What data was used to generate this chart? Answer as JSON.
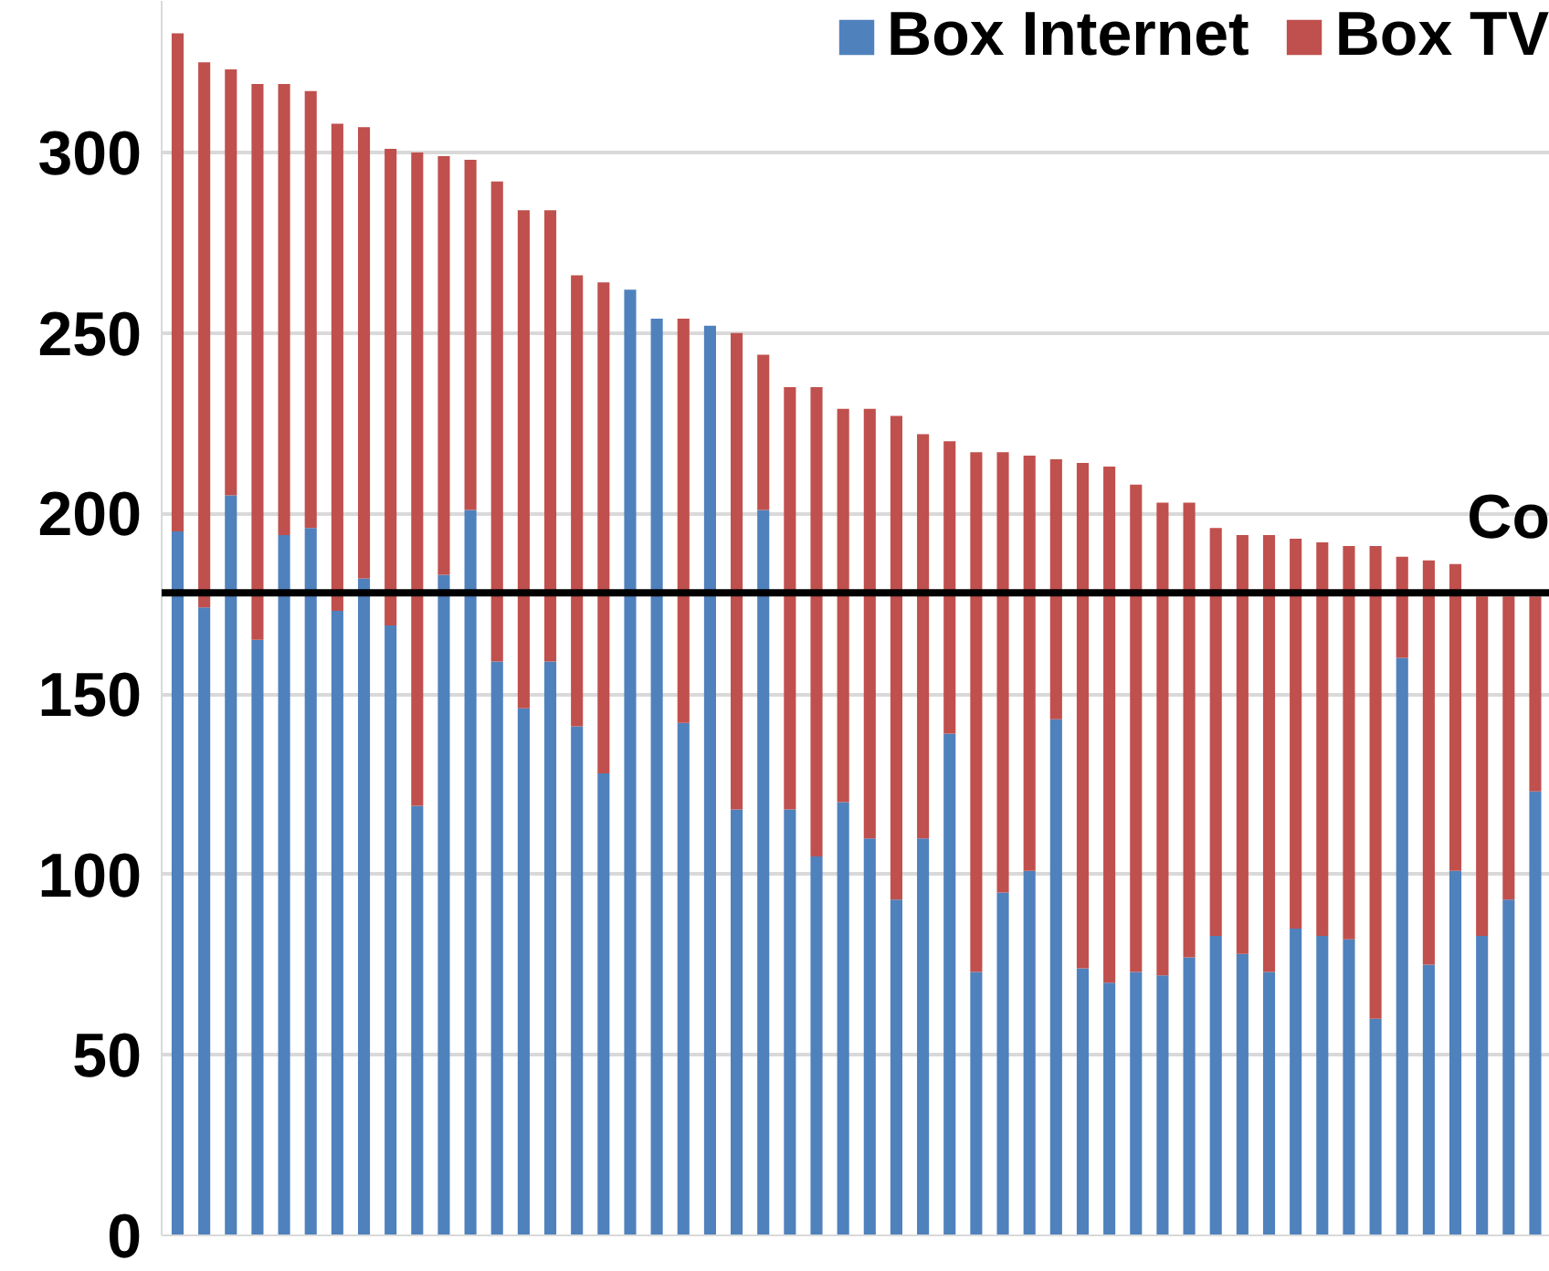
{
  "chart_data": {
    "type": "bar",
    "stacked": true,
    "categories": [
      null,
      null,
      null,
      null,
      null,
      null,
      null,
      null,
      null,
      null,
      null,
      null,
      null,
      null,
      null,
      null,
      null,
      null,
      null,
      null,
      null,
      null,
      null,
      null,
      null,
      null,
      null,
      null,
      null,
      null,
      null,
      null,
      null,
      null,
      null,
      null,
      null,
      null,
      null,
      null,
      null,
      null,
      null,
      null,
      null,
      null,
      null,
      null,
      null,
      null,
      null,
      null
    ],
    "series": [
      {
        "name": "Box Internet",
        "color": "#4f81bd",
        "values": [
          195,
          174,
          205,
          165,
          194,
          196,
          173,
          182,
          169,
          119,
          183,
          201,
          159,
          146,
          159,
          141,
          128,
          262,
          254,
          142,
          252,
          118,
          201,
          118,
          105,
          120,
          110,
          93,
          110,
          139,
          73,
          95,
          101,
          143,
          74,
          70,
          73,
          72,
          77,
          83,
          78,
          73,
          85,
          83,
          82,
          60,
          160,
          75,
          101,
          83,
          93,
          123
        ]
      },
      {
        "name": "Box TV",
        "color": "#c0504d",
        "values": [
          138,
          151,
          118,
          154,
          125,
          121,
          135,
          125,
          132,
          181,
          116,
          97,
          133,
          138,
          125,
          125,
          136,
          0,
          0,
          112,
          0,
          132,
          43,
          117,
          130,
          109,
          119,
          134,
          112,
          81,
          144,
          122,
          115,
          72,
          140,
          143,
          135,
          131,
          126,
          113,
          116,
          121,
          108,
          109,
          109,
          131,
          28,
          112,
          85,
          94,
          84,
          54
        ]
      }
    ],
    "ylim": [
      0,
      342
    ],
    "yticks": [
      0,
      50,
      100,
      150,
      200,
      250,
      300
    ],
    "grid": "y",
    "legend": "top right",
    "tick_labels": "y",
    "ref_lines": [
      {
        "axis": "y",
        "value": 178,
        "label": "Co",
        "color": "#000000"
      }
    ]
  }
}
